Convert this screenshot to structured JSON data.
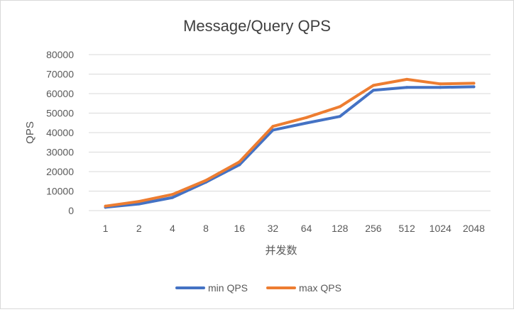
{
  "chart_data": {
    "type": "line",
    "title": "Message/Query QPS",
    "xlabel": "并发数",
    "ylabel": "QPS",
    "categories": [
      "1",
      "2",
      "4",
      "8",
      "16",
      "32",
      "64",
      "128",
      "256",
      "512",
      "1024",
      "2048"
    ],
    "ylim": [
      0,
      80000
    ],
    "yticks": [
      0,
      10000,
      20000,
      30000,
      40000,
      50000,
      60000,
      70000,
      80000
    ],
    "grid": true,
    "legend_position": "bottom",
    "series": [
      {
        "name": "min QPS",
        "color": "#4472C4",
        "values": [
          1700,
          3400,
          6700,
          14600,
          23500,
          41300,
          44900,
          48300,
          61700,
          63200,
          63200,
          63500
        ]
      },
      {
        "name": "max QPS",
        "color": "#ED7D31",
        "values": [
          2300,
          4700,
          8300,
          15500,
          25000,
          43200,
          47700,
          53300,
          64200,
          67300,
          65000,
          65300
        ]
      }
    ]
  }
}
